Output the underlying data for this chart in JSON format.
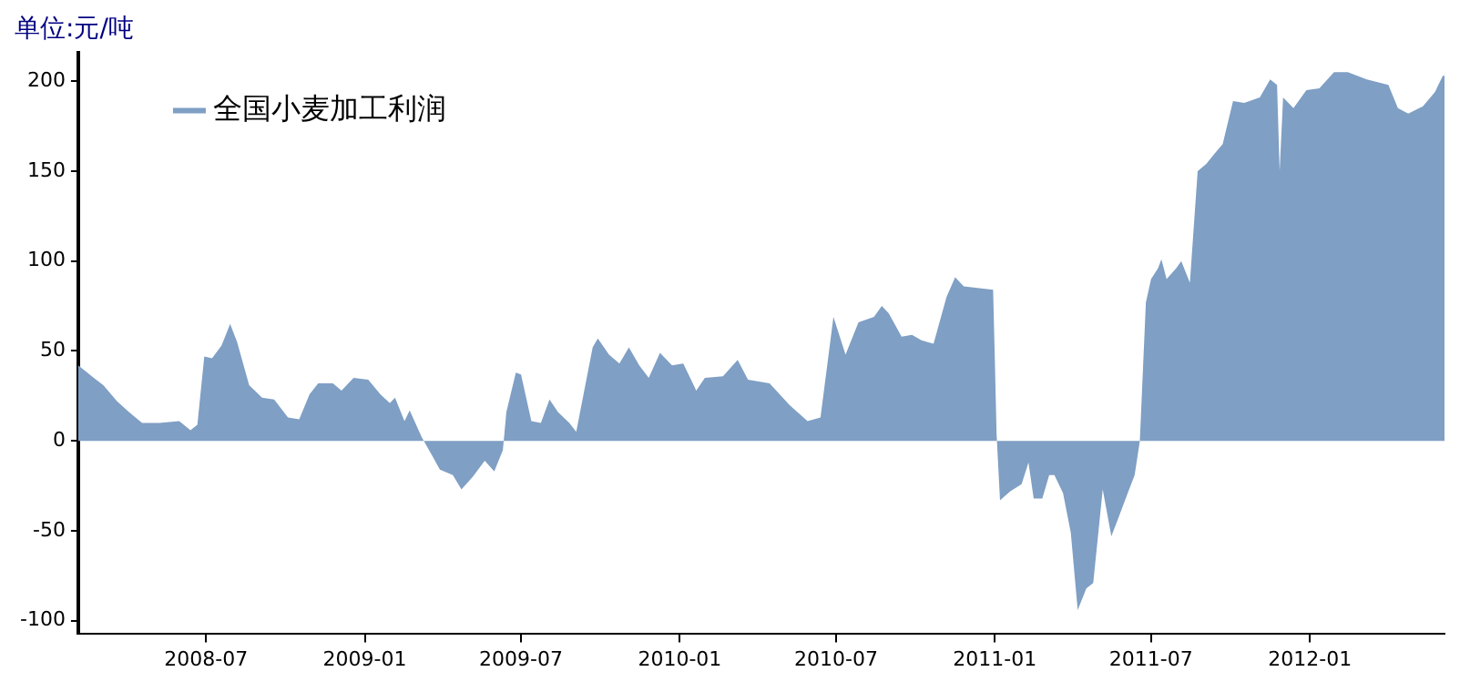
{
  "chart_data": {
    "type": "area",
    "title": "单位:元/吨",
    "legend": "top left",
    "grid": false,
    "xlim": [
      "2008-02-04",
      "2012-06-05"
    ],
    "xticks": [
      "2008-07",
      "2009-01",
      "2009-07",
      "2010-01",
      "2010-07",
      "2011-01",
      "2011-07",
      "2012-01"
    ],
    "ylim": [
      -107,
      216
    ],
    "yticks": [
      -100,
      -50,
      0,
      50,
      100,
      150,
      200
    ],
    "series": [
      {
        "name": "全国小麦加工利润",
        "color": "#7f9fc4",
        "x": [
          "2008-02-04",
          "2008-02-22",
          "2008-03-04",
          "2008-03-20",
          "2008-04-03",
          "2008-04-18",
          "2008-05-08",
          "2008-05-31",
          "2008-06-13",
          "2008-06-21",
          "2008-06-29",
          "2008-07-08",
          "2008-07-19",
          "2008-07-29",
          "2008-08-06",
          "2008-08-20",
          "2008-09-04",
          "2008-09-18",
          "2008-10-04",
          "2008-10-17",
          "2008-10-29",
          "2008-11-08",
          "2008-11-25",
          "2008-12-05",
          "2008-12-19",
          "2009-01-05",
          "2009-01-19",
          "2009-01-30",
          "2009-02-05",
          "2009-02-16",
          "2009-02-22",
          "2009-03-08",
          "2009-03-21",
          "2009-03-29",
          "2009-04-13",
          "2009-04-23",
          "2009-05-06",
          "2009-05-20",
          "2009-05-31",
          "2009-06-10",
          "2009-06-14",
          "2009-06-25",
          "2009-07-01",
          "2009-07-13",
          "2009-07-24",
          "2009-08-03",
          "2009-08-13",
          "2009-08-26",
          "2009-09-03",
          "2009-09-22",
          "2009-09-28",
          "2009-10-11",
          "2009-10-23",
          "2009-11-03",
          "2009-11-15",
          "2009-11-26",
          "2009-12-09",
          "2009-12-23",
          "2010-01-05",
          "2010-01-20",
          "2010-01-30",
          "2010-02-20",
          "2010-03-09",
          "2010-03-21",
          "2010-04-15",
          "2010-05-08",
          "2010-05-29",
          "2010-06-13",
          "2010-06-28",
          "2010-07-12",
          "2010-07-27",
          "2010-08-14",
          "2010-08-23",
          "2010-08-31",
          "2010-09-15",
          "2010-09-27",
          "2010-10-08",
          "2010-10-22",
          "2010-11-06",
          "2010-11-16",
          "2010-11-26",
          "2010-12-30",
          "2011-01-01",
          "2011-01-03",
          "2011-01-07",
          "2011-01-19",
          "2011-02-01",
          "2011-02-09",
          "2011-02-15",
          "2011-02-25",
          "2011-03-05",
          "2011-03-11",
          "2011-03-21",
          "2011-03-30",
          "2011-04-07",
          "2011-04-17",
          "2011-04-25",
          "2011-05-06",
          "2011-05-16",
          "2011-05-24",
          "2011-06-04",
          "2011-06-12",
          "2011-06-18",
          "2011-06-25",
          "2011-07-01",
          "2011-07-09",
          "2011-07-13",
          "2011-07-19",
          "2011-07-30",
          "2011-08-05",
          "2011-08-15",
          "2011-08-24",
          "2011-09-03",
          "2011-09-13",
          "2011-09-22",
          "2011-10-04",
          "2011-10-17",
          "2011-11-04",
          "2011-11-16",
          "2011-11-24",
          "2011-11-27",
          "2011-12-01",
          "2011-12-13",
          "2011-12-28",
          "2012-01-12",
          "2012-01-29",
          "2012-02-14",
          "2012-03-07",
          "2012-04-01",
          "2012-04-12",
          "2012-04-24",
          "2012-05-11",
          "2012-05-25",
          "2012-06-03",
          "2012-06-05"
        ],
        "values": [
          42,
          35,
          31,
          22,
          16,
          10,
          10,
          11,
          6,
          9,
          47,
          46,
          53,
          65,
          55,
          31,
          24,
          23,
          13,
          12,
          26,
          32,
          32,
          28,
          35,
          34,
          26,
          21,
          24,
          11,
          17,
          2,
          -9,
          -16,
          -19,
          -27,
          -20,
          -11,
          -17,
          -5,
          16,
          38,
          37,
          11,
          10,
          23,
          16,
          10,
          5,
          52,
          57,
          48,
          43,
          52,
          42,
          35,
          49,
          42,
          43,
          28,
          35,
          36,
          45,
          34,
          32,
          20,
          11,
          13,
          69,
          48,
          66,
          69,
          75,
          71,
          58,
          59,
          56,
          54,
          80,
          91,
          86,
          84,
          45,
          4,
          -33,
          -28,
          -24,
          -12,
          -32,
          -32,
          -19,
          -19,
          -29,
          -51,
          -94,
          -82,
          -79,
          -27,
          -53,
          -43,
          -29,
          -19,
          0,
          77,
          90,
          96,
          101,
          90,
          96,
          100,
          88,
          150,
          154,
          160,
          165,
          189,
          188,
          191,
          201,
          198,
          150,
          191,
          185,
          195,
          196,
          205,
          205,
          201,
          198,
          185,
          182,
          186,
          194,
          203,
          203
        ]
      }
    ]
  }
}
